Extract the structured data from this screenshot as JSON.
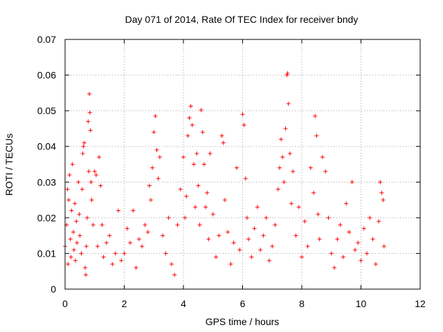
{
  "chart_data": {
    "type": "scatter",
    "title": "Day 071 of 2014, Rate Of TEC Index for receiver bndy",
    "xlabel": "GPS time / hours",
    "ylabel": "ROTI / TECUs",
    "xlim": [
      0,
      12
    ],
    "ylim": [
      0,
      0.07
    ],
    "grid": true,
    "marker": "+",
    "color": "#ff0000",
    "x_ticks": [
      0,
      2,
      4,
      6,
      8,
      10,
      12
    ],
    "x_tick_labels": [
      "0",
      "2",
      "4",
      "6",
      "8",
      "10",
      "12"
    ],
    "y_ticks": [
      0,
      0.01,
      0.02,
      0.03,
      0.04,
      0.05,
      0.06,
      0.07
    ],
    "y_tick_labels": [
      "0",
      "0.01",
      "0.02",
      "0.03",
      "0.04",
      "0.05",
      "0.06",
      "0.07"
    ],
    "series": [
      {
        "name": "ROTI",
        "points": [
          [
            0.0,
            0.012
          ],
          [
            0.05,
            0.018
          ],
          [
            0.08,
            0.028
          ],
          [
            0.1,
            0.007
          ],
          [
            0.12,
            0.025
          ],
          [
            0.15,
            0.032
          ],
          [
            0.18,
            0.014
          ],
          [
            0.2,
            0.009
          ],
          [
            0.22,
            0.022
          ],
          [
            0.25,
            0.035
          ],
          [
            0.28,
            0.016
          ],
          [
            0.3,
            0.011
          ],
          [
            0.33,
            0.024
          ],
          [
            0.35,
            0.008
          ],
          [
            0.38,
            0.019
          ],
          [
            0.4,
            0.013
          ],
          [
            0.45,
            0.03
          ],
          [
            0.48,
            0.021
          ],
          [
            0.5,
            0.015
          ],
          [
            0.55,
            0.01
          ],
          [
            0.58,
            0.028
          ],
          [
            0.6,
            0.038
          ],
          [
            0.62,
            0.04
          ],
          [
            0.65,
            0.041
          ],
          [
            0.68,
            0.006
          ],
          [
            0.7,
            0.004
          ],
          [
            0.72,
            0.012
          ],
          [
            0.75,
            0.02
          ],
          [
            0.78,
            0.047
          ],
          [
            0.8,
            0.033
          ],
          [
            0.82,
            0.0547
          ],
          [
            0.84,
            0.0495
          ],
          [
            0.86,
            0.0445
          ],
          [
            0.88,
            0.03
          ],
          [
            0.9,
            0.025
          ],
          [
            0.95,
            0.018
          ],
          [
            1.0,
            0.033
          ],
          [
            1.05,
            0.032
          ],
          [
            1.1,
            0.012
          ],
          [
            1.15,
            0.037
          ],
          [
            1.2,
            0.029
          ],
          [
            1.25,
            0.018
          ],
          [
            1.3,
            0.009
          ],
          [
            1.4,
            0.013
          ],
          [
            1.5,
            0.015
          ],
          [
            1.6,
            0.007
          ],
          [
            1.7,
            0.01
          ],
          [
            1.8,
            0.022
          ],
          [
            1.9,
            0.008
          ],
          [
            2.0,
            0.01
          ],
          [
            2.1,
            0.017
          ],
          [
            2.2,
            0.013
          ],
          [
            2.3,
            0.022
          ],
          [
            2.4,
            0.006
          ],
          [
            2.5,
            0.014
          ],
          [
            2.6,
            0.012
          ],
          [
            2.7,
            0.018
          ],
          [
            2.8,
            0.016
          ],
          [
            2.85,
            0.029
          ],
          [
            2.9,
            0.025
          ],
          [
            2.95,
            0.034
          ],
          [
            3.0,
            0.044
          ],
          [
            3.05,
            0.0485
          ],
          [
            3.1,
            0.039
          ],
          [
            3.15,
            0.031
          ],
          [
            3.2,
            0.037
          ],
          [
            3.3,
            0.015
          ],
          [
            3.4,
            0.01
          ],
          [
            3.5,
            0.02
          ],
          [
            3.6,
            0.007
          ],
          [
            3.7,
            0.004
          ],
          [
            3.8,
            0.018
          ],
          [
            3.9,
            0.028
          ],
          [
            4.0,
            0.037
          ],
          [
            4.05,
            0.02
          ],
          [
            4.1,
            0.026
          ],
          [
            4.15,
            0.043
          ],
          [
            4.2,
            0.048
          ],
          [
            4.25,
            0.0513
          ],
          [
            4.3,
            0.046
          ],
          [
            4.35,
            0.035
          ],
          [
            4.4,
            0.023
          ],
          [
            4.45,
            0.038
          ],
          [
            4.5,
            0.029
          ],
          [
            4.55,
            0.018
          ],
          [
            4.6,
            0.0502
          ],
          [
            4.65,
            0.044
          ],
          [
            4.7,
            0.035
          ],
          [
            4.75,
            0.023
          ],
          [
            4.8,
            0.027
          ],
          [
            4.85,
            0.014
          ],
          [
            4.9,
            0.038
          ],
          [
            5.0,
            0.021
          ],
          [
            5.1,
            0.009
          ],
          [
            5.2,
            0.015
          ],
          [
            5.3,
            0.043
          ],
          [
            5.35,
            0.041
          ],
          [
            5.4,
            0.025
          ],
          [
            5.5,
            0.016
          ],
          [
            5.6,
            0.007
          ],
          [
            5.7,
            0.013
          ],
          [
            5.8,
            0.034
          ],
          [
            5.9,
            0.011
          ],
          [
            6.0,
            0.049
          ],
          [
            6.05,
            0.046
          ],
          [
            6.1,
            0.031
          ],
          [
            6.15,
            0.02
          ],
          [
            6.2,
            0.014
          ],
          [
            6.3,
            0.009
          ],
          [
            6.4,
            0.017
          ],
          [
            6.5,
            0.023
          ],
          [
            6.6,
            0.011
          ],
          [
            6.7,
            0.015
          ],
          [
            6.8,
            0.02
          ],
          [
            6.9,
            0.008
          ],
          [
            7.0,
            0.012
          ],
          [
            7.1,
            0.018
          ],
          [
            7.2,
            0.028
          ],
          [
            7.25,
            0.034
          ],
          [
            7.3,
            0.042
          ],
          [
            7.35,
            0.037
          ],
          [
            7.4,
            0.03
          ],
          [
            7.45,
            0.045
          ],
          [
            7.5,
            0.06
          ],
          [
            7.52,
            0.0605
          ],
          [
            7.55,
            0.052
          ],
          [
            7.6,
            0.038
          ],
          [
            7.65,
            0.024
          ],
          [
            7.7,
            0.033
          ],
          [
            7.8,
            0.015
          ],
          [
            7.9,
            0.023
          ],
          [
            8.0,
            0.009
          ],
          [
            8.1,
            0.019
          ],
          [
            8.2,
            0.012
          ],
          [
            8.3,
            0.034
          ],
          [
            8.4,
            0.027
          ],
          [
            8.45,
            0.0485
          ],
          [
            8.5,
            0.043
          ],
          [
            8.55,
            0.021
          ],
          [
            8.6,
            0.014
          ],
          [
            8.7,
            0.037
          ],
          [
            8.8,
            0.033
          ],
          [
            8.9,
            0.02
          ],
          [
            9.0,
            0.01
          ],
          [
            9.1,
            0.006
          ],
          [
            9.2,
            0.014
          ],
          [
            9.3,
            0.018
          ],
          [
            9.4,
            0.009
          ],
          [
            9.5,
            0.024
          ],
          [
            9.6,
            0.016
          ],
          [
            9.7,
            0.03
          ],
          [
            9.8,
            0.011
          ],
          [
            9.9,
            0.013
          ],
          [
            10.0,
            0.008
          ],
          [
            10.1,
            0.017
          ],
          [
            10.2,
            0.01
          ],
          [
            10.3,
            0.02
          ],
          [
            10.4,
            0.014
          ],
          [
            10.5,
            0.007
          ],
          [
            10.6,
            0.019
          ],
          [
            10.65,
            0.03
          ],
          [
            10.7,
            0.027
          ],
          [
            10.75,
            0.025
          ],
          [
            10.78,
            0.012
          ]
        ]
      }
    ]
  }
}
